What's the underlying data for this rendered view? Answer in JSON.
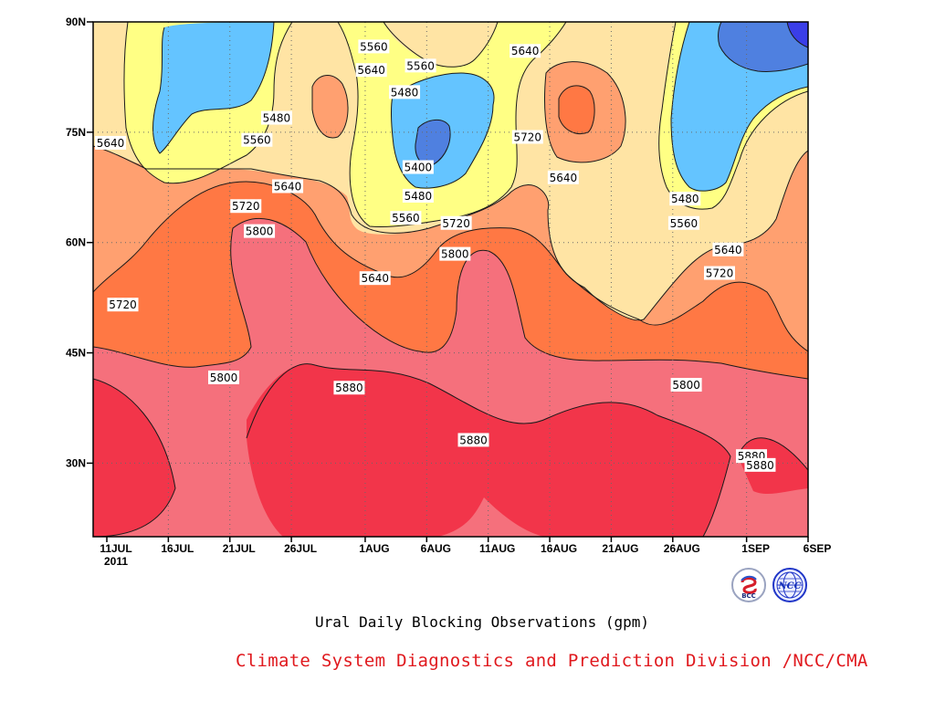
{
  "chart_data": {
    "type": "heatmap",
    "title": "",
    "xlabel": "",
    "ylabel": "",
    "x_ticks": [
      "11JUL",
      "16JUL",
      "21JUL",
      "26JUL",
      "1AUG",
      "6AUG",
      "11AUG",
      "16AUG",
      "21AUG",
      "26AUG",
      "1SEP",
      "6SEP"
    ],
    "x_year_label": "2011",
    "y_ticks": [
      "90N",
      "75N",
      "60N",
      "45N",
      "30N"
    ],
    "y_values": [
      90,
      75,
      60,
      45,
      30
    ],
    "ylim": [
      20,
      90
    ],
    "grid": true,
    "contour_levels": [
      5320,
      5400,
      5480,
      5560,
      5640,
      5720,
      5800,
      5880
    ],
    "fill_colors": [
      "#3a3ee8",
      "#4f80e0",
      "#64c4ff",
      "#ffff84",
      "#ffe4a4",
      "#ffa070",
      "#ff7844",
      "#f5707c",
      "#f2354a"
    ],
    "contour_labels": [
      {
        "text": "5560",
        "day": 21.7,
        "lat": 86.6
      },
      {
        "text": "5640",
        "day": 21.5,
        "lat": 83.4
      },
      {
        "text": "5560",
        "day": 25.5,
        "lat": 84.0
      },
      {
        "text": "5480",
        "day": 24.2,
        "lat": 80.4
      },
      {
        "text": "5640",
        "day": 34.0,
        "lat": 86.0
      },
      {
        "text": "5480",
        "day": 13.8,
        "lat": 76.9
      },
      {
        "text": "5560",
        "day": 12.2,
        "lat": 73.9
      },
      {
        "text": "5640",
        "day": 0.3,
        "lat": 73.5
      },
      {
        "text": "5640",
        "day": 14.7,
        "lat": 67.6
      },
      {
        "text": "5720",
        "day": 11.3,
        "lat": 64.9
      },
      {
        "text": "5800",
        "day": 12.4,
        "lat": 61.5
      },
      {
        "text": "5720",
        "day": 28.4,
        "lat": 62.6
      },
      {
        "text": "5800",
        "day": 28.3,
        "lat": 58.4
      },
      {
        "text": "5400",
        "day": 25.3,
        "lat": 70.2
      },
      {
        "text": "5480",
        "day": 25.3,
        "lat": 66.3
      },
      {
        "text": "5560",
        "day": 24.3,
        "lat": 63.3
      },
      {
        "text": "5720",
        "day": 34.2,
        "lat": 74.3
      },
      {
        "text": "5640",
        "day": 37.1,
        "lat": 68.8
      },
      {
        "text": "5480",
        "day": 47.0,
        "lat": 65.9
      },
      {
        "text": "5560",
        "day": 46.9,
        "lat": 62.6
      },
      {
        "text": "5640",
        "day": 50.5,
        "lat": 59.0
      },
      {
        "text": "5720",
        "day": 49.8,
        "lat": 55.8
      },
      {
        "text": "5640",
        "day": 21.8,
        "lat": 55.1
      },
      {
        "text": "5720",
        "day": 1.3,
        "lat": 51.5
      },
      {
        "text": "5800",
        "day": 9.5,
        "lat": 41.6
      },
      {
        "text": "5880",
        "day": 19.7,
        "lat": 40.2
      },
      {
        "text": "5800",
        "day": 47.1,
        "lat": 40.6
      },
      {
        "text": "5880",
        "day": 29.8,
        "lat": 33.1
      },
      {
        "text": "5880",
        "day": 52.4,
        "lat": 30.9
      },
      {
        "text": "5880",
        "day": 53.1,
        "lat": 29.7
      }
    ]
  },
  "caption": {
    "subtitle": "Ural Daily Blocking Observations (gpm)",
    "credit": "Climate System Diagnostics and Prediction Division /NCC/CMA"
  },
  "logos": {
    "left": "BCC",
    "right": "NCC"
  }
}
